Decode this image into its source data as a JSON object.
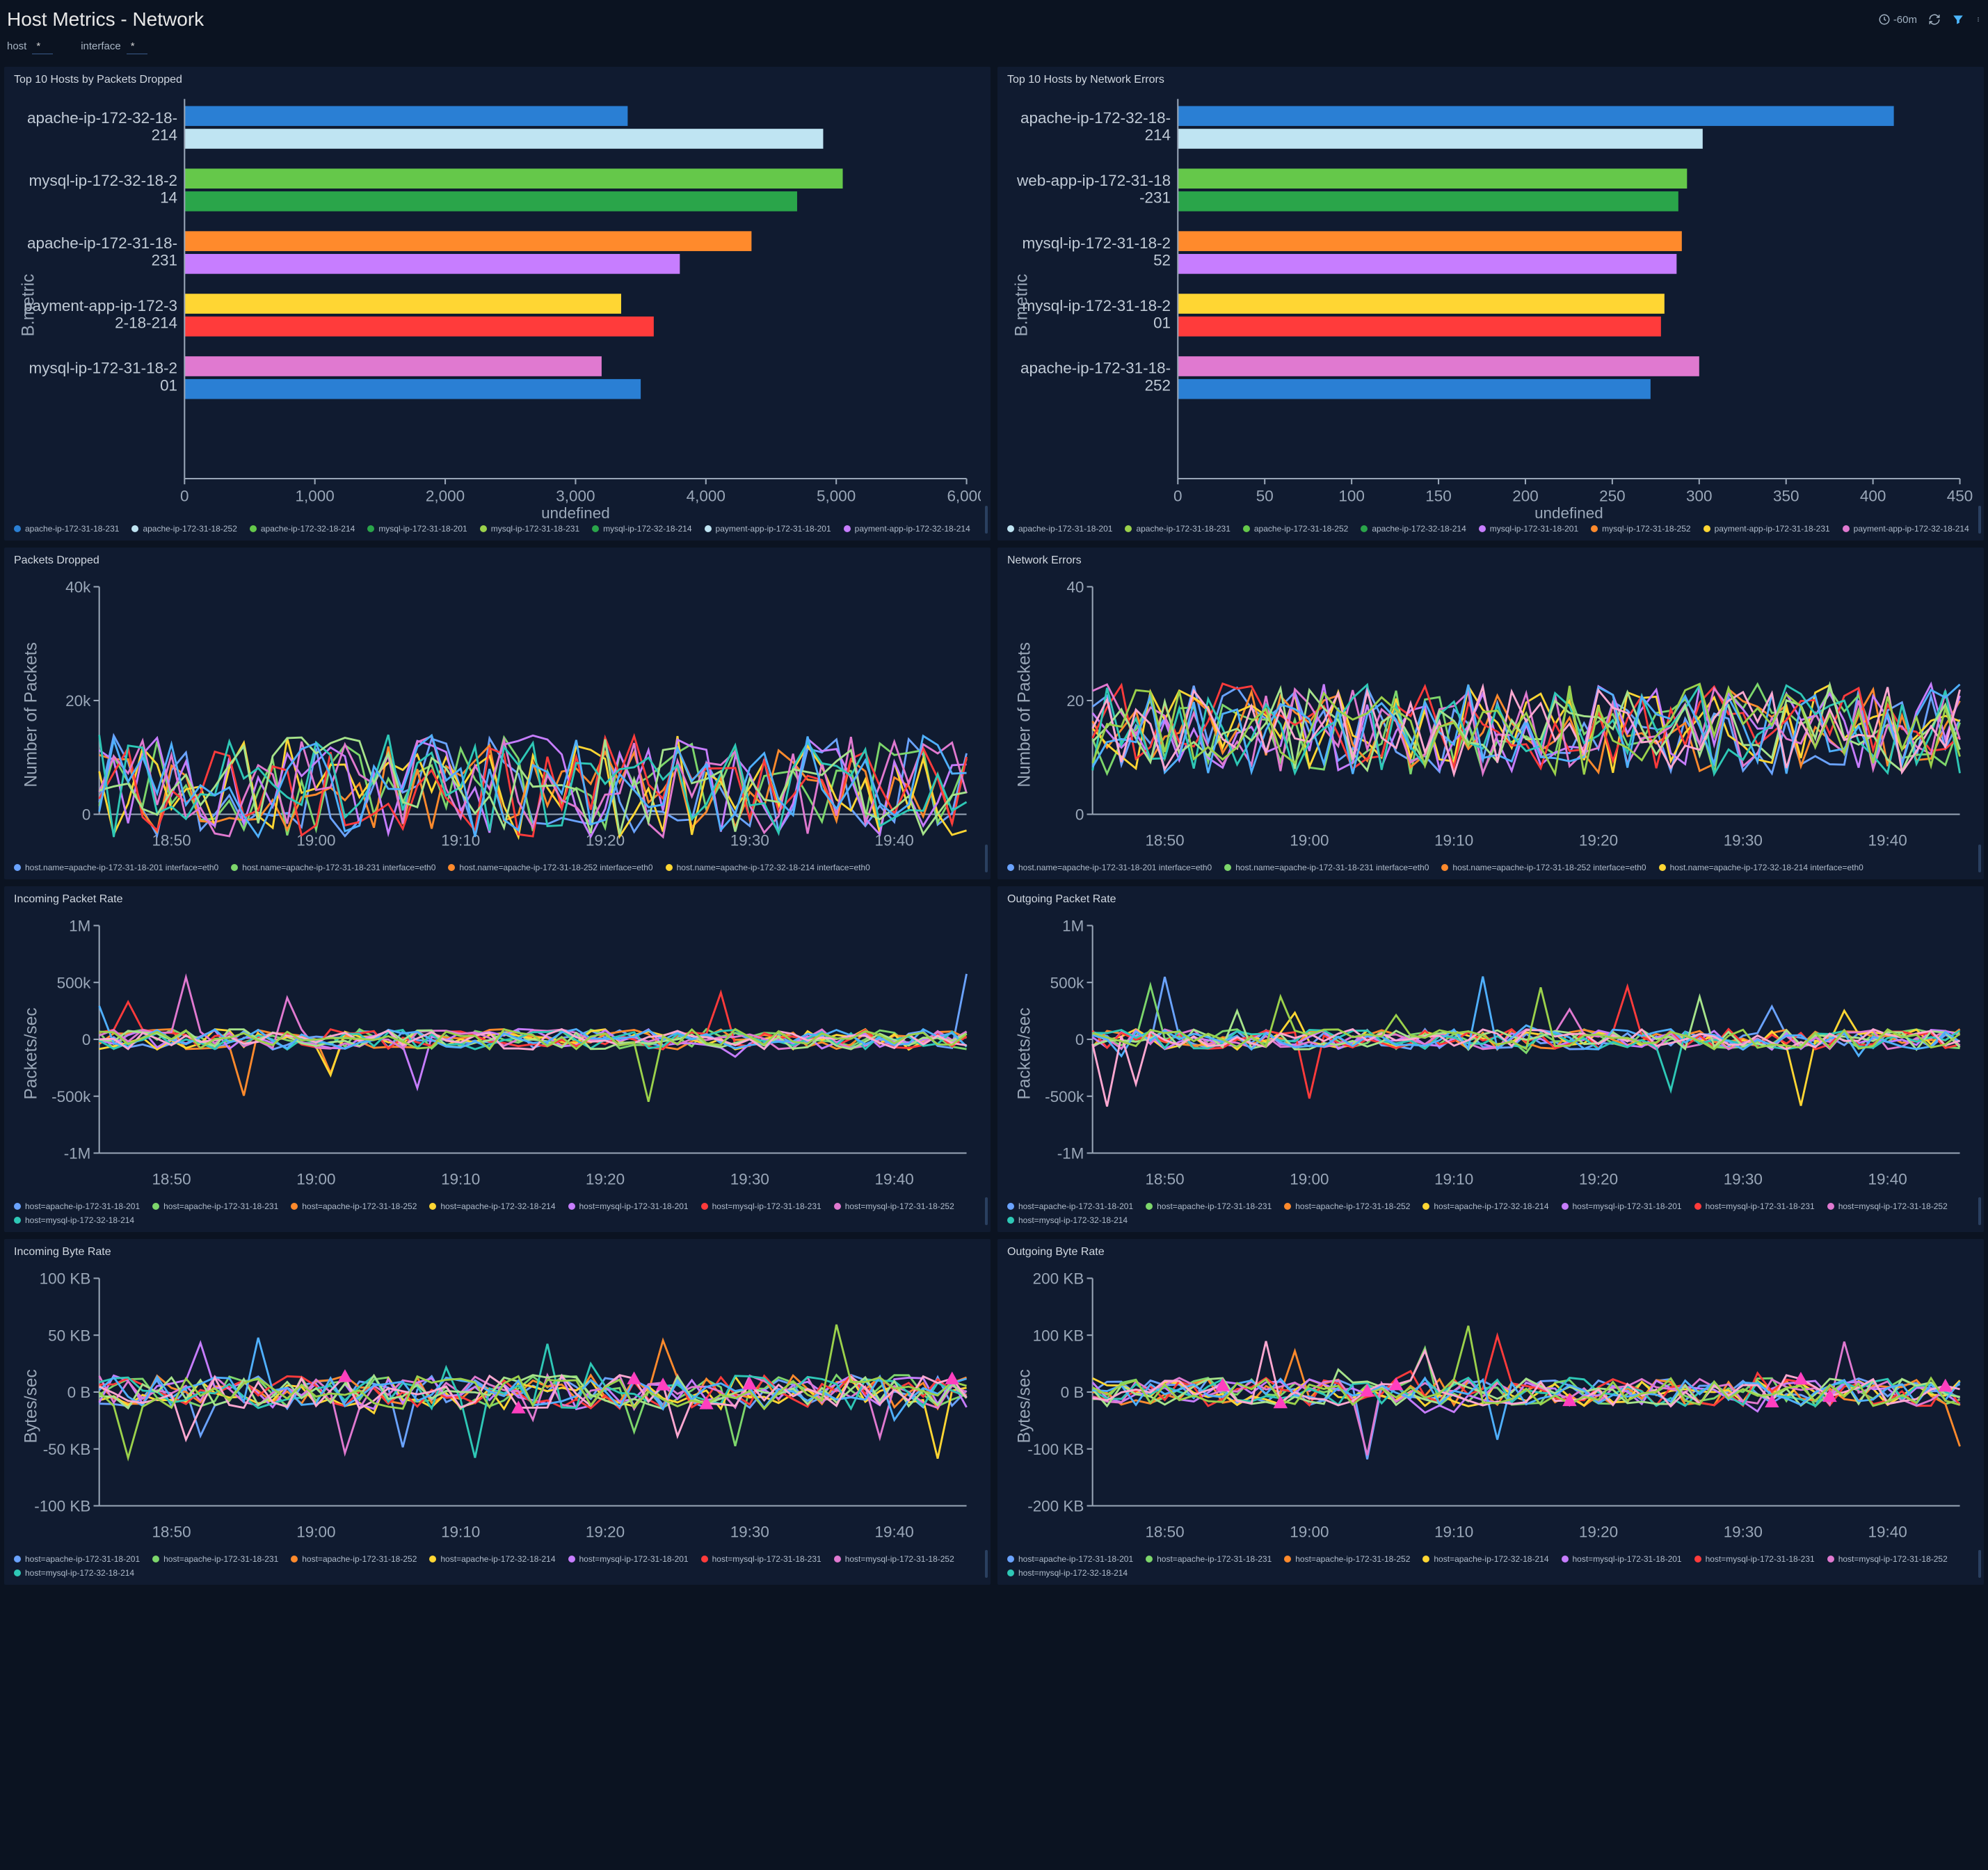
{
  "header": {
    "title": "Host Metrics - Network",
    "time_range": "-60m"
  },
  "filters": [
    {
      "label": "host",
      "value": "*"
    },
    {
      "label": "interface",
      "value": "*"
    }
  ],
  "colors": {
    "panel_bg": "#101b30",
    "page_bg": "#0b1321",
    "grid": "#1c2a42",
    "axis_text": "#9aa7b8",
    "filter_active": "#4db7ff"
  },
  "time_axis": {
    "ticks": [
      "18:50",
      "19:00",
      "19:10",
      "19:20",
      "19:30",
      "19:40"
    ],
    "xmin": 0,
    "xmax": 60
  },
  "series_palette": [
    "#6aa3ff",
    "#7dd66b",
    "#ff8a2c",
    "#ffd633",
    "#c77dff",
    "#ff3b3b",
    "#e079d0",
    "#2ec8b6",
    "#a6e38a",
    "#4fb0ff",
    "#ffa8d1",
    "#9bd14b"
  ],
  "panels": {
    "top_packets_dropped": {
      "title": "Top 10 Hosts by Packets Dropped",
      "type": "hbar",
      "xmax": 6000,
      "xtick": 1000,
      "xlabel": "undefined",
      "ylabel": "B.metric",
      "rows": [
        {
          "label": "apache-ip-172-32-18-214",
          "a": 3400,
          "b": 4900,
          "ca": "#2a7fd4",
          "cb": "#bfe4f2"
        },
        {
          "label": "mysql-ip-172-32-18-214",
          "a": 5050,
          "b": 4700,
          "ca": "#65c84a",
          "cb": "#2aa54a"
        },
        {
          "label": "apache-ip-172-31-18-231",
          "a": 4350,
          "b": 3800,
          "ca": "#ff8a2c",
          "cb": "#c77dff"
        },
        {
          "label": "payment-app-ip-172-32-18-214",
          "a": 3350,
          "b": 3600,
          "ca": "#ffd633",
          "cb": "#ff3b3b"
        },
        {
          "label": "mysql-ip-172-31-18-201",
          "a": 3200,
          "b": 3500,
          "ca": "#e079d0",
          "cb": "#2a7fd4"
        }
      ],
      "legend": [
        "apache-ip-172-31-18-231",
        "apache-ip-172-31-18-252",
        "apache-ip-172-32-18-214",
        "mysql-ip-172-31-18-201",
        "mysql-ip-172-31-18-231",
        "mysql-ip-172-32-18-214",
        "payment-app-ip-172-31-18-201",
        "payment-app-ip-172-32-18-214"
      ],
      "legend_colors": [
        "#2a7fd4",
        "#bfe4f2",
        "#65c84a",
        "#2aa54a",
        "#9bd14b",
        "#2aa54a",
        "#bfe4f2",
        "#c77dff"
      ]
    },
    "top_network_errors": {
      "title": "Top 10 Hosts by Network Errors",
      "type": "hbar",
      "xmax": 450,
      "xtick": 50,
      "xlabel": "undefined",
      "ylabel": "B.metric",
      "rows": [
        {
          "label": "apache-ip-172-32-18-214",
          "a": 412,
          "b": 302,
          "ca": "#2a7fd4",
          "cb": "#bfe4f2"
        },
        {
          "label": "web-app-ip-172-31-18-231",
          "a": 293,
          "b": 288,
          "ca": "#65c84a",
          "cb": "#2aa54a"
        },
        {
          "label": "mysql-ip-172-31-18-252",
          "a": 290,
          "b": 287,
          "ca": "#ff8a2c",
          "cb": "#c77dff"
        },
        {
          "label": "mysql-ip-172-31-18-201",
          "a": 280,
          "b": 278,
          "ca": "#ffd633",
          "cb": "#ff3b3b"
        },
        {
          "label": "apache-ip-172-31-18-252",
          "a": 300,
          "b": 272,
          "ca": "#e079d0",
          "cb": "#2a7fd4"
        }
      ],
      "legend": [
        "apache-ip-172-31-18-201",
        "apache-ip-172-31-18-231",
        "apache-ip-172-31-18-252",
        "apache-ip-172-32-18-214",
        "mysql-ip-172-31-18-201",
        "mysql-ip-172-31-18-252",
        "payment-app-ip-172-31-18-231",
        "payment-app-ip-172-32-18-214"
      ],
      "legend_colors": [
        "#bfe4f2",
        "#9bd14b",
        "#65c84a",
        "#2aa54a",
        "#c77dff",
        "#ff8a2c",
        "#ffd633",
        "#e079d0"
      ]
    },
    "packets_dropped": {
      "title": "Packets Dropped",
      "type": "line",
      "ylabel": "Number of Packets",
      "ymin": 0,
      "ymax": 40000,
      "yticks": [
        0,
        20000,
        40000
      ],
      "yticklabels": [
        "0",
        "20k",
        "40k"
      ],
      "n_series": 10,
      "noise": 9000,
      "base": 5000,
      "legend": [
        "host.name=apache-ip-172-31-18-201 interface=eth0",
        "host.name=apache-ip-172-31-18-231 interface=eth0",
        "host.name=apache-ip-172-31-18-252 interface=eth0",
        "host.name=apache-ip-172-32-18-214 interface=eth0"
      ]
    },
    "network_errors": {
      "title": "Network Errors",
      "type": "line",
      "ylabel": "Number of Packets",
      "ymin": 0,
      "ymax": 40,
      "yticks": [
        0,
        20,
        40
      ],
      "yticklabels": [
        "0",
        "20",
        "40"
      ],
      "n_series": 12,
      "noise": 8,
      "base": 15,
      "legend": [
        "host.name=apache-ip-172-31-18-201 interface=eth0",
        "host.name=apache-ip-172-31-18-231 interface=eth0",
        "host.name=apache-ip-172-31-18-252 interface=eth0",
        "host.name=apache-ip-172-32-18-214 interface=eth0"
      ]
    },
    "incoming_packet_rate": {
      "title": "Incoming Packet Rate",
      "type": "line",
      "ylabel": "Packets/sec",
      "ymin": -1000000,
      "ymax": 1000000,
      "yticks": [
        -1000000,
        -500000,
        0,
        500000,
        1000000
      ],
      "yticklabels": [
        "-1M",
        "-500k",
        "0",
        "500k",
        "1M"
      ],
      "n_series": 12,
      "noise": 90000,
      "base": 0,
      "spikes": true,
      "legend": [
        "host=apache-ip-172-31-18-201",
        "host=apache-ip-172-31-18-231",
        "host=apache-ip-172-31-18-252",
        "host=apache-ip-172-32-18-214",
        "host=mysql-ip-172-31-18-201",
        "host=mysql-ip-172-31-18-231",
        "host=mysql-ip-172-31-18-252",
        "host=mysql-ip-172-32-18-214"
      ]
    },
    "outgoing_packet_rate": {
      "title": "Outgoing Packet Rate",
      "type": "line",
      "ylabel": "Packets/sec",
      "ymin": -1000000,
      "ymax": 1000000,
      "yticks": [
        -1000000,
        -500000,
        0,
        500000,
        1000000
      ],
      "yticklabels": [
        "-1M",
        "-500k",
        "0",
        "500k",
        "1M"
      ],
      "n_series": 12,
      "noise": 90000,
      "base": 0,
      "spikes": true,
      "legend": [
        "host=apache-ip-172-31-18-201",
        "host=apache-ip-172-31-18-231",
        "host=apache-ip-172-31-18-252",
        "host=apache-ip-172-32-18-214",
        "host=mysql-ip-172-31-18-201",
        "host=mysql-ip-172-31-18-231",
        "host=mysql-ip-172-31-18-252",
        "host=mysql-ip-172-32-18-214"
      ]
    },
    "incoming_byte_rate": {
      "title": "Incoming Byte Rate",
      "type": "line",
      "ylabel": "Bytes/sec",
      "ymin": -100000,
      "ymax": 100000,
      "yticks": [
        -100000,
        -50000,
        0,
        50000,
        100000
      ],
      "yticklabels": [
        "-100 KB",
        "-50 KB",
        "0 B",
        "50 KB",
        "100 KB"
      ],
      "n_series": 12,
      "noise": 15000,
      "base": 0,
      "spikes": true,
      "markers": true,
      "legend": [
        "host=apache-ip-172-31-18-201",
        "host=apache-ip-172-31-18-231",
        "host=apache-ip-172-31-18-252",
        "host=apache-ip-172-32-18-214",
        "host=mysql-ip-172-31-18-201",
        "host=mysql-ip-172-31-18-231",
        "host=mysql-ip-172-31-18-252",
        "host=mysql-ip-172-32-18-214"
      ]
    },
    "outgoing_byte_rate": {
      "title": "Outgoing Byte Rate",
      "type": "line",
      "ylabel": "Bytes/sec",
      "ymin": -200000,
      "ymax": 200000,
      "yticks": [
        -200000,
        -100000,
        0,
        100000,
        200000
      ],
      "yticklabels": [
        "-200 KB",
        "-100 KB",
        "0 B",
        "100 KB",
        "200 KB"
      ],
      "n_series": 12,
      "noise": 25000,
      "base": 0,
      "spikes": true,
      "markers": true,
      "legend": [
        "host=apache-ip-172-31-18-201",
        "host=apache-ip-172-31-18-231",
        "host=apache-ip-172-31-18-252",
        "host=apache-ip-172-32-18-214",
        "host=mysql-ip-172-31-18-201",
        "host=mysql-ip-172-31-18-231",
        "host=mysql-ip-172-31-18-252",
        "host=mysql-ip-172-32-18-214"
      ]
    }
  },
  "panel_order": [
    "top_packets_dropped",
    "top_network_errors",
    "packets_dropped",
    "network_errors",
    "incoming_packet_rate",
    "outgoing_packet_rate",
    "incoming_byte_rate",
    "outgoing_byte_rate"
  ]
}
